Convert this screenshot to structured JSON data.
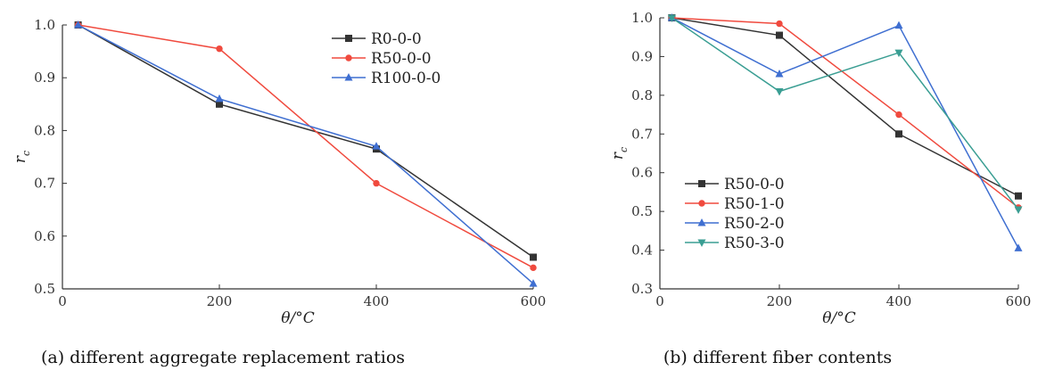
{
  "figure": {
    "panels": [
      {
        "caption": "(a) different aggregate replacement ratios"
      },
      {
        "caption": "(b) different fiber contents"
      }
    ]
  },
  "chart_data": [
    {
      "type": "line",
      "xlabel": "θ/°C",
      "ylabel": "r",
      "ylabel_sub": "c",
      "xlim": [
        0,
        600
      ],
      "ylim": [
        0.5,
        1.0
      ],
      "xticks": [
        "0",
        "200",
        "400",
        "600"
      ],
      "yticks": [
        "0.5",
        "0.6",
        "0.7",
        "0.8",
        "0.9",
        "1.0"
      ],
      "legend_position": "top-right",
      "grid": false,
      "x": [
        20,
        200,
        400,
        600
      ],
      "series": [
        {
          "name": "R0-0-0",
          "color": "#333333",
          "marker": "square",
          "values": [
            1.0,
            0.85,
            0.765,
            0.56
          ]
        },
        {
          "name": "R50-0-0",
          "color": "#f04a3e",
          "marker": "circle",
          "values": [
            1.0,
            0.955,
            0.7,
            0.54
          ]
        },
        {
          "name": "R100-0-0",
          "color": "#3f6fd1",
          "marker": "triangle-up",
          "values": [
            1.0,
            0.86,
            0.77,
            0.51
          ]
        }
      ]
    },
    {
      "type": "line",
      "xlabel": "θ/°C",
      "ylabel": "r",
      "ylabel_sub": "c",
      "xlim": [
        0,
        600
      ],
      "ylim": [
        0.3,
        1.0
      ],
      "xticks": [
        "0",
        "200",
        "400",
        "600"
      ],
      "yticks": [
        "0.3",
        "0.4",
        "0.5",
        "0.6",
        "0.7",
        "0.8",
        "0.9",
        "1.0"
      ],
      "legend_position": "bottom-left",
      "grid": false,
      "x": [
        20,
        200,
        400,
        600
      ],
      "series": [
        {
          "name": "R50-0-0",
          "color": "#333333",
          "marker": "square",
          "values": [
            1.0,
            0.955,
            0.7,
            0.54
          ]
        },
        {
          "name": "R50-1-0",
          "color": "#f04a3e",
          "marker": "circle",
          "values": [
            1.0,
            0.985,
            0.75,
            0.51
          ]
        },
        {
          "name": "R50-2-0",
          "color": "#3f6fd1",
          "marker": "triangle-up",
          "values": [
            1.0,
            0.855,
            0.98,
            0.405
          ]
        },
        {
          "name": "R50-3-0",
          "color": "#3a9e93",
          "marker": "triangle-down",
          "values": [
            1.0,
            0.81,
            0.91,
            0.505
          ]
        }
      ]
    }
  ]
}
